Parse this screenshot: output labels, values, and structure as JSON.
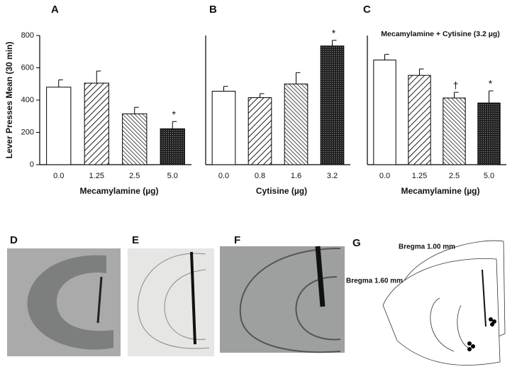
{
  "chart_data": [
    {
      "type": "bar",
      "title": "A",
      "y_label": "Lever Presses Mean (30 min)",
      "x_label": "Mecamylamine (µg)",
      "categories": [
        "0.0",
        "1.25",
        "2.5",
        "5.0"
      ],
      "values": [
        480,
        505,
        315,
        222
      ],
      "errors": [
        45,
        75,
        40,
        45
      ],
      "markers": [
        null,
        null,
        null,
        "*"
      ],
      "ylim": [
        0,
        800
      ],
      "yticks": [
        0,
        200,
        400,
        600,
        800
      ]
    },
    {
      "type": "bar",
      "title": "B",
      "x_label": "Cytisine (µg)",
      "categories": [
        "0.0",
        "0.8",
        "1.6",
        "3.2"
      ],
      "values": [
        455,
        415,
        500,
        735
      ],
      "errors": [
        30,
        25,
        70,
        35
      ],
      "markers": [
        null,
        null,
        null,
        "*"
      ],
      "ylim": [
        0,
        800
      ]
    },
    {
      "type": "bar",
      "title": "C",
      "subtitle": "Mecamylamine + Cytisine (3.2 µg)",
      "x_label": "Mecamylamine (µg)",
      "categories": [
        "0.0",
        "1.25",
        "2.5",
        "5.0"
      ],
      "values": [
        648,
        553,
        413,
        382
      ],
      "errors": [
        35,
        40,
        35,
        75
      ],
      "markers": [
        null,
        null,
        "†",
        "*"
      ],
      "ylim": [
        0,
        800
      ]
    }
  ],
  "panels": {
    "d": "D",
    "e": "E",
    "f": "F",
    "g": "G",
    "bregma_top": "Bregma 1.00 mm",
    "bregma_bottom": "Bregma 1.60 mm"
  }
}
